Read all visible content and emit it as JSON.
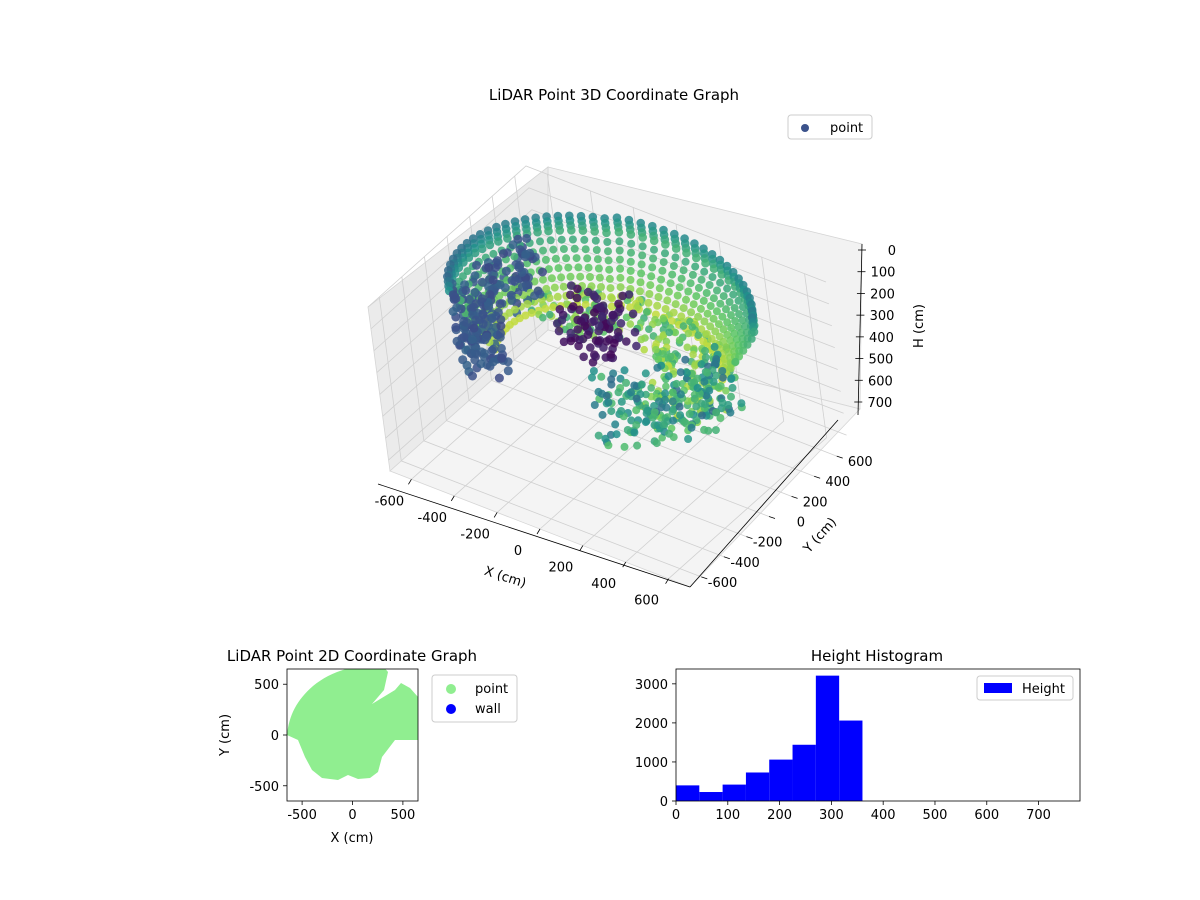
{
  "figure": {
    "titles": {
      "main3d": "LiDAR Point 3D Coordinate Graph",
      "plot2d": "LiDAR Point 2D Coordinate Graph",
      "histogram": "Height Histogram"
    }
  },
  "colors": {
    "point_3d": "#3b528b",
    "point_2d": "#90ee90",
    "wall": "#0000ff",
    "histogram": "#0000ff"
  },
  "chart_data": [
    {
      "type": "scatter",
      "id": "scatter3d",
      "title": "LiDAR Point 3D Coordinate Graph",
      "xlabel": "X (cm)",
      "ylabel": "Y (cm)",
      "zlabel": "H (cm)",
      "xlim": [
        -700,
        700
      ],
      "ylim": [
        -700,
        700
      ],
      "zlim": [
        0,
        750
      ],
      "z_inverted": true,
      "xticks": [
        -600,
        -400,
        -200,
        0,
        200,
        400,
        600
      ],
      "yticks": [
        -600,
        -400,
        -200,
        0,
        200,
        400,
        600
      ],
      "zticks": [
        0,
        100,
        200,
        300,
        400,
        500,
        600,
        700
      ],
      "colormap": "viridis",
      "legend": {
        "placement": "top-right",
        "entries": [
          "point"
        ]
      },
      "series": [
        {
          "name": "point",
          "description_shape": "ring-shaped room scan, radius ~400-650 cm, heights 0-350 cm"
        }
      ]
    },
    {
      "type": "scatter",
      "id": "scatter2d",
      "title": "LiDAR Point 2D Coordinate Graph",
      "xlabel": "X (cm)",
      "ylabel": "Y (cm)",
      "xlim": [
        -650,
        650
      ],
      "ylim": [
        -650,
        650
      ],
      "xticks": [
        -500,
        0,
        500
      ],
      "yticks": [
        -500,
        0,
        500
      ],
      "legend": {
        "placement": "outside-right",
        "entries": [
          "point",
          "wall"
        ]
      },
      "series": [
        {
          "name": "point"
        },
        {
          "name": "wall"
        }
      ]
    },
    {
      "type": "bar",
      "id": "histogram",
      "title": "Height Histogram",
      "xlim": [
        0,
        780
      ],
      "ylim": [
        0,
        3380
      ],
      "xticks": [
        0,
        100,
        200,
        300,
        400,
        500,
        600,
        700
      ],
      "yticks": [
        0,
        1000,
        2000,
        3000
      ],
      "legend": {
        "placement": "top-right",
        "entries": [
          "Height"
        ]
      },
      "series": [
        {
          "name": "Height",
          "bin_edges": [
            0,
            45,
            90,
            135,
            180,
            225,
            270,
            315,
            360
          ],
          "values": [
            400,
            230,
            420,
            730,
            1060,
            1440,
            3210,
            2060
          ]
        }
      ]
    }
  ]
}
